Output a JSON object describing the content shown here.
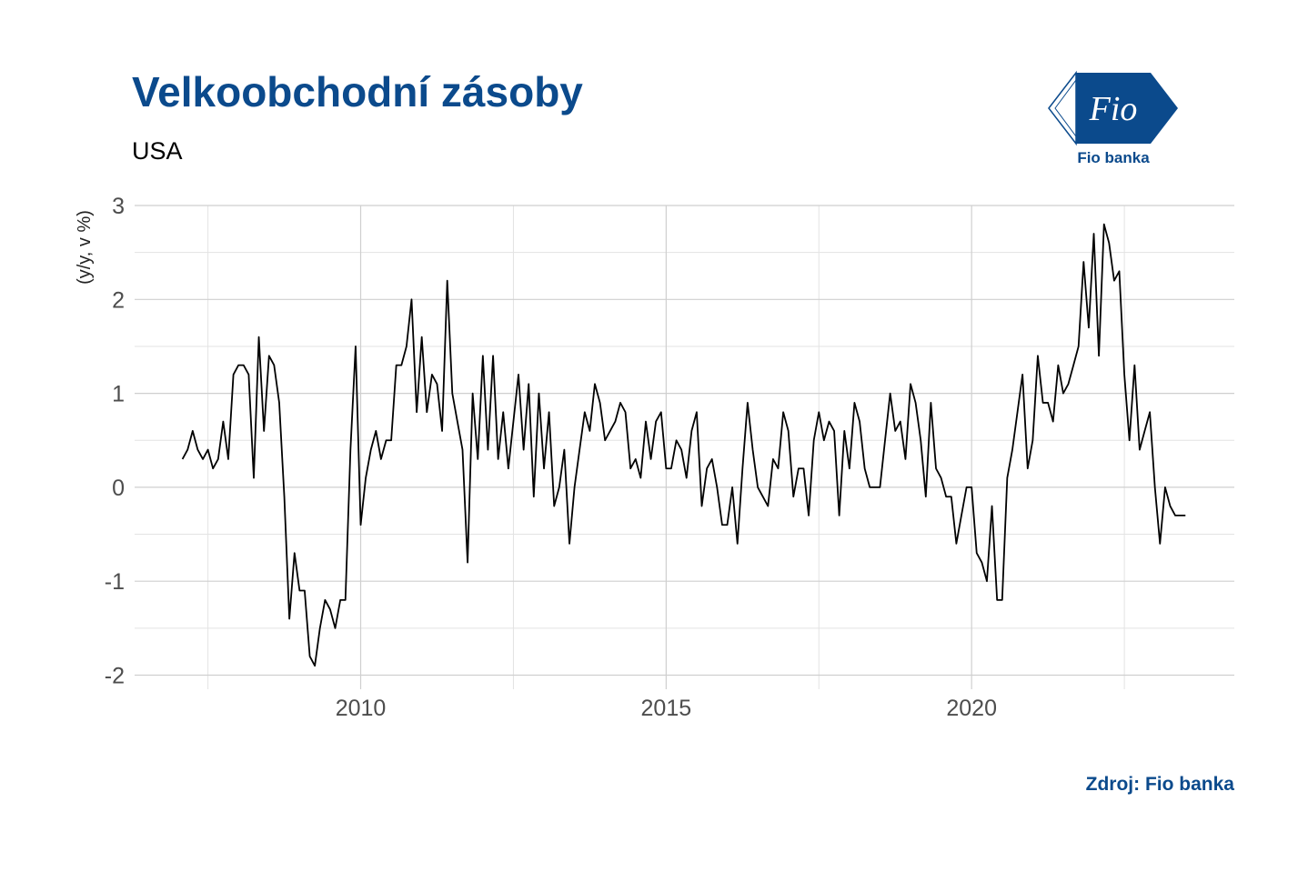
{
  "chart_data": {
    "type": "line",
    "title": "Velkoobchodní zásoby",
    "subtitle": "USA",
    "y_label": "(y/y, v %)",
    "source": "Zdroj: Fio banka",
    "color": "#000000",
    "grid": true,
    "xlim": [
      2006.3,
      2024.3
    ],
    "ylim": [
      -2.15,
      3.0
    ],
    "xticks": [
      2010,
      2015,
      2020
    ],
    "yticks": [
      -2,
      -1,
      0,
      1,
      2,
      3
    ],
    "x_minor_ticks": [
      2007.5,
      2012.5,
      2017.5,
      2022.5
    ],
    "y_minor_ticks": [
      -1.5,
      -0.5,
      0.5,
      1.5,
      2.5
    ],
    "x": [
      2007.083,
      2007.167,
      2007.25,
      2007.333,
      2007.417,
      2007.5,
      2007.583,
      2007.667,
      2007.75,
      2007.833,
      2007.917,
      2008,
      2008.083,
      2008.167,
      2008.25,
      2008.333,
      2008.417,
      2008.5,
      2008.583,
      2008.667,
      2008.75,
      2008.833,
      2008.917,
      2009,
      2009.083,
      2009.167,
      2009.25,
      2009.333,
      2009.417,
      2009.5,
      2009.583,
      2009.667,
      2009.75,
      2009.833,
      2009.917,
      2010,
      2010.083,
      2010.167,
      2010.25,
      2010.333,
      2010.417,
      2010.5,
      2010.583,
      2010.667,
      2010.75,
      2010.833,
      2010.917,
      2011,
      2011.083,
      2011.167,
      2011.25,
      2011.333,
      2011.417,
      2011.5,
      2011.583,
      2011.667,
      2011.75,
      2011.833,
      2011.917,
      2012,
      2012.083,
      2012.167,
      2012.25,
      2012.333,
      2012.417,
      2012.5,
      2012.583,
      2012.667,
      2012.75,
      2012.833,
      2012.917,
      2013,
      2013.083,
      2013.167,
      2013.25,
      2013.333,
      2013.417,
      2013.5,
      2013.583,
      2013.667,
      2013.75,
      2013.833,
      2013.917,
      2014,
      2014.083,
      2014.167,
      2014.25,
      2014.333,
      2014.417,
      2014.5,
      2014.583,
      2014.667,
      2014.75,
      2014.833,
      2014.917,
      2015,
      2015.083,
      2015.167,
      2015.25,
      2015.333,
      2015.417,
      2015.5,
      2015.583,
      2015.667,
      2015.75,
      2015.833,
      2015.917,
      2016,
      2016.083,
      2016.167,
      2016.25,
      2016.333,
      2016.417,
      2016.5,
      2016.583,
      2016.667,
      2016.75,
      2016.833,
      2016.917,
      2017,
      2017.083,
      2017.167,
      2017.25,
      2017.333,
      2017.417,
      2017.5,
      2017.583,
      2017.667,
      2017.75,
      2017.833,
      2017.917,
      2018,
      2018.083,
      2018.167,
      2018.25,
      2018.333,
      2018.417,
      2018.5,
      2018.583,
      2018.667,
      2018.75,
      2018.833,
      2018.917,
      2019,
      2019.083,
      2019.167,
      2019.25,
      2019.333,
      2019.417,
      2019.5,
      2019.583,
      2019.667,
      2019.75,
      2019.833,
      2019.917,
      2020,
      2020.083,
      2020.167,
      2020.25,
      2020.333,
      2020.417,
      2020.5,
      2020.583,
      2020.667,
      2020.75,
      2020.833,
      2020.917,
      2021,
      2021.083,
      2021.167,
      2021.25,
      2021.333,
      2021.417,
      2021.5,
      2021.583,
      2021.667,
      2021.75,
      2021.833,
      2021.917,
      2022,
      2022.083,
      2022.167,
      2022.25,
      2022.333,
      2022.417,
      2022.5,
      2022.583,
      2022.667,
      2022.75,
      2022.833,
      2022.917,
      2023,
      2023.083,
      2023.167,
      2023.25,
      2023.333,
      2023.417,
      2023.5
    ],
    "values": [
      0.3,
      0.4,
      0.6,
      0.4,
      0.3,
      0.4,
      0.2,
      0.3,
      0.7,
      0.3,
      1.2,
      1.3,
      1.3,
      1.2,
      0.1,
      1.6,
      0.6,
      1.4,
      1.3,
      0.9,
      -0.1,
      -1.4,
      -0.7,
      -1.1,
      -1.1,
      -1.8,
      -1.9,
      -1.5,
      -1.2,
      -1.3,
      -1.5,
      -1.2,
      -1.2,
      0.4,
      1.5,
      -0.4,
      0.1,
      0.4,
      0.6,
      0.3,
      0.5,
      0.5,
      1.3,
      1.3,
      1.5,
      2.0,
      0.8,
      1.6,
      0.8,
      1.2,
      1.1,
      0.6,
      2.2,
      1.0,
      0.7,
      0.4,
      -0.8,
      1.0,
      0.3,
      1.4,
      0.4,
      1.4,
      0.3,
      0.8,
      0.2,
      0.7,
      1.2,
      0.4,
      1.1,
      -0.1,
      1.0,
      0.2,
      0.8,
      -0.2,
      0.0,
      0.4,
      -0.6,
      0.0,
      0.4,
      0.8,
      0.6,
      1.1,
      0.9,
      0.5,
      0.6,
      0.7,
      0.9,
      0.8,
      0.2,
      0.3,
      0.1,
      0.7,
      0.3,
      0.7,
      0.8,
      0.2,
      0.2,
      0.5,
      0.4,
      0.1,
      0.6,
      0.8,
      -0.2,
      0.2,
      0.3,
      0.0,
      -0.4,
      -0.4,
      0.0,
      -0.6,
      0.2,
      0.9,
      0.4,
      0.0,
      -0.1,
      -0.2,
      0.3,
      0.2,
      0.8,
      0.6,
      -0.1,
      0.2,
      0.2,
      -0.3,
      0.5,
      0.8,
      0.5,
      0.7,
      0.6,
      -0.3,
      0.6,
      0.2,
      0.9,
      0.7,
      0.2,
      0.0,
      0.0,
      0.0,
      0.5,
      1.0,
      0.6,
      0.7,
      0.3,
      1.1,
      0.9,
      0.5,
      -0.1,
      0.9,
      0.2,
      0.1,
      -0.1,
      -0.1,
      -0.6,
      -0.3,
      0.0,
      0.0,
      -0.7,
      -0.8,
      -1.0,
      -0.2,
      -1.2,
      -1.2,
      0.1,
      0.4,
      0.8,
      1.2,
      0.2,
      0.5,
      1.4,
      0.9,
      0.9,
      0.7,
      1.3,
      1.0,
      1.1,
      1.3,
      1.5,
      2.4,
      1.7,
      2.7,
      1.4,
      2.8,
      2.6,
      2.2,
      2.3,
      1.2,
      0.5,
      1.3,
      0.4,
      0.6,
      0.8,
      0.0,
      -0.6,
      0.0,
      -0.2,
      -0.3,
      -0.3,
      -0.3
    ]
  },
  "logo": {
    "mark": "Fio",
    "name": "Fio banka"
  }
}
